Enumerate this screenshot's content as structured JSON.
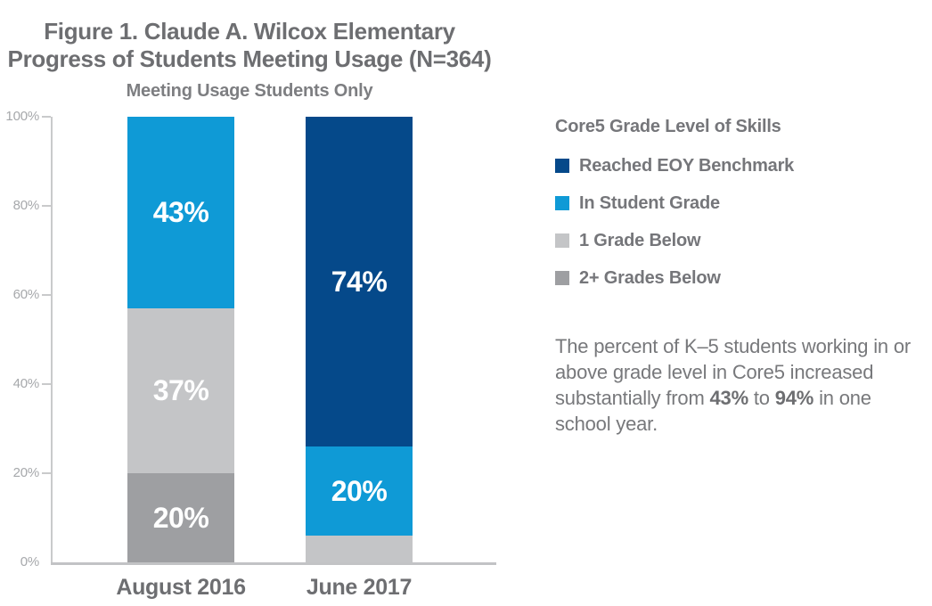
{
  "figure": {
    "title_line1": "Figure 1. Claude A. Wilcox Elementary",
    "title_line2": "Progress of Students Meeting Usage (N=364)",
    "subtitle": "Meeting Usage Students Only"
  },
  "caption": {
    "text_before": "The percent of K–5 students working in or above grade level in Core5 increased substantially from ",
    "bold_1": "43%",
    "text_mid": " to ",
    "bold_2": "94%",
    "text_after": " in one school year."
  },
  "colors": {
    "navy": "#05498a",
    "blue": "#0f9ad6",
    "light_gray": "#c4c5c7",
    "mid_gray": "#9e9fa2",
    "axis_line": "#c9cacb",
    "title_text": "#6d6e71",
    "tick_text": "#a6a8ab",
    "body_text": "#77787b"
  },
  "chart_data": {
    "type": "bar",
    "stacked": true,
    "title": "Figure 1. Claude A. Wilcox Elementary Progress of Students Meeting Usage (N=364)",
    "subtitle": "Meeting Usage Students Only",
    "legend_title": "Core5 Grade Level of Skills",
    "legend_position": "right",
    "grid": false,
    "ylim": [
      0,
      100
    ],
    "y_ticks": [
      {
        "value": 0,
        "label": "0%"
      },
      {
        "value": 20,
        "label": "20%"
      },
      {
        "value": 40,
        "label": "40%"
      },
      {
        "value": 60,
        "label": "60%"
      },
      {
        "value": 80,
        "label": "80%"
      },
      {
        "value": 100,
        "label": "100%"
      }
    ],
    "categories": [
      "August 2016",
      "June 2017"
    ],
    "series": [
      {
        "name": "Reached EOY Benchmark",
        "color": "#05498a",
        "values": [
          0,
          74
        ]
      },
      {
        "name": "In Student Grade",
        "color": "#0f9ad6",
        "values": [
          43,
          20
        ]
      },
      {
        "name": "1 Grade Below",
        "color": "#c4c5c7",
        "values": [
          37,
          6
        ]
      },
      {
        "name": "2+ Grades Below",
        "color": "#9e9fa2",
        "values": [
          20,
          0
        ]
      }
    ],
    "bars": [
      {
        "category": "August 2016",
        "segments": [
          {
            "series": "In Student Grade",
            "value": 43,
            "label": "43%"
          },
          {
            "series": "1 Grade Below",
            "value": 37,
            "label": "37%"
          },
          {
            "series": "2+ Grades Below",
            "value": 20,
            "label": "20%"
          }
        ]
      },
      {
        "category": "June 2017",
        "segments": [
          {
            "series": "Reached EOY Benchmark",
            "value": 74,
            "label": "74%"
          },
          {
            "series": "In Student Grade",
            "value": 20,
            "label": "20%"
          },
          {
            "series": "1 Grade Below",
            "value": 6,
            "label": ""
          }
        ]
      }
    ]
  }
}
